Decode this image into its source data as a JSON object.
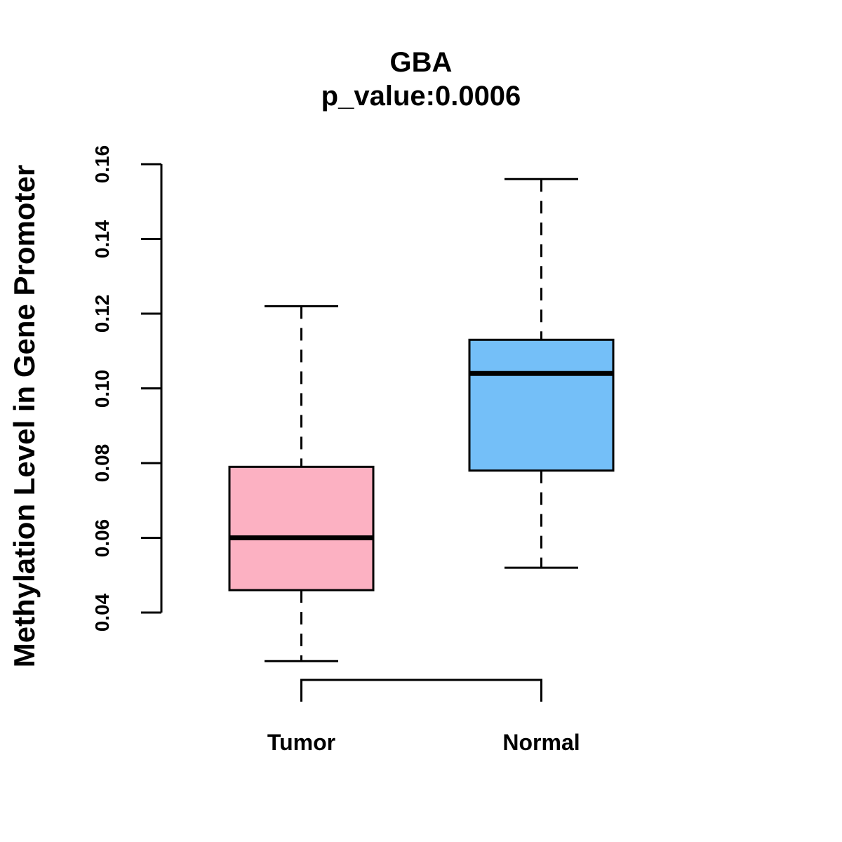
{
  "chart_data": {
    "type": "boxplot",
    "title": "GBA",
    "subtitle": "p_value:0.0006",
    "ylabel": "Methylation Level in Gene Promoter",
    "xlabel": "",
    "categories": [
      "Tumor",
      "Normal"
    ],
    "axis_range": [
      0.04,
      0.16
    ],
    "yticks": [
      0.04,
      0.06,
      0.08,
      0.1,
      0.12,
      0.14,
      0.16
    ],
    "ytick_labels": [
      "0.04",
      "0.06",
      "0.08",
      "0.10",
      "0.12",
      "0.14",
      "0.16"
    ],
    "grid": false,
    "legend": "none",
    "stroke_color": "#000000",
    "background_color": "#FFFFFF",
    "series": [
      {
        "name": "Tumor",
        "fill_color": "#FCB1C2",
        "whisker_low": 0.027,
        "q1": 0.046,
        "median": 0.06,
        "q3": 0.079,
        "whisker_high": 0.122
      },
      {
        "name": "Normal",
        "fill_color": "#74BFF8",
        "whisker_low": 0.052,
        "q1": 0.078,
        "median": 0.104,
        "q3": 0.113,
        "whisker_high": 0.156
      }
    ],
    "comparison_bracket": {
      "from": "Tumor",
      "to": "Normal"
    }
  }
}
